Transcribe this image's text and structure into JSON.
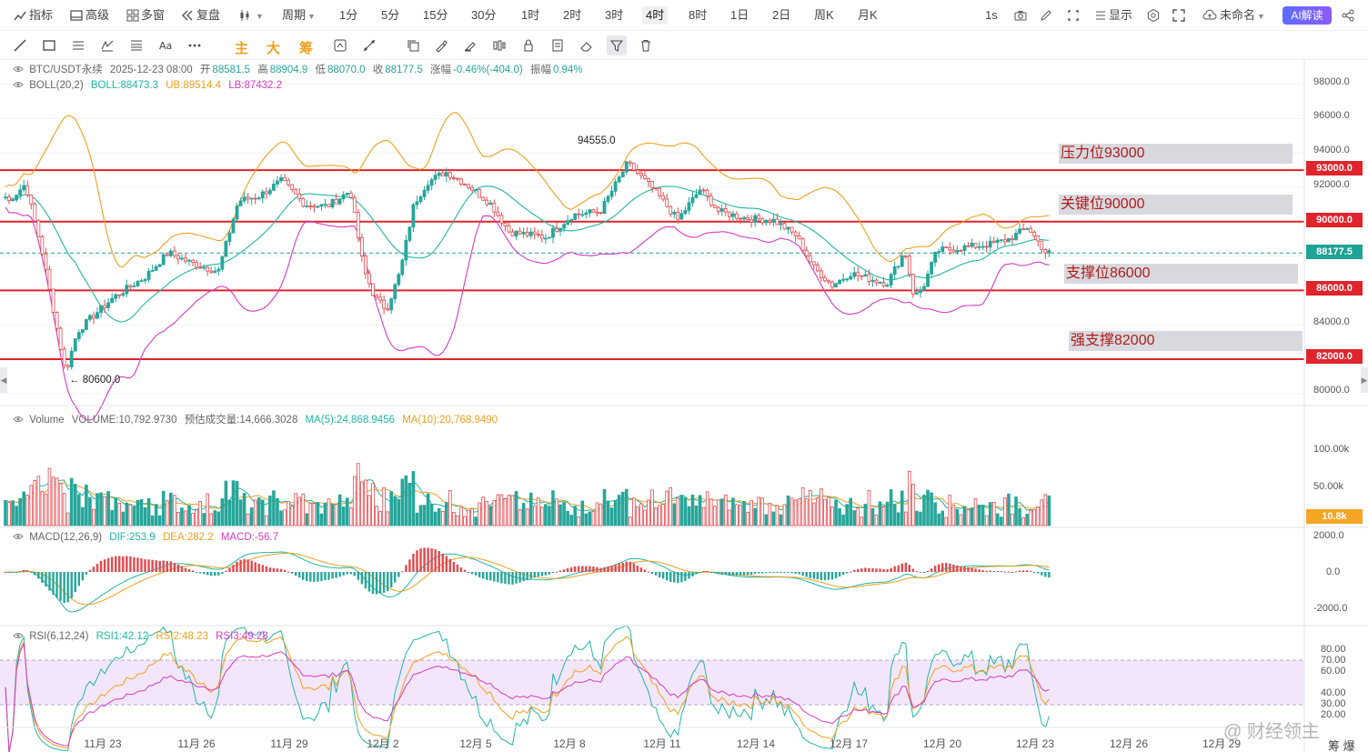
{
  "toolbar": {
    "items": [
      {
        "label": "指标",
        "icon": "indicator-icon"
      },
      {
        "label": "高级",
        "icon": "layout-icon"
      },
      {
        "label": "多窗",
        "icon": "grid-icon"
      },
      {
        "label": "复盘",
        "icon": "rewind-icon"
      },
      {
        "label": "",
        "icon": "chart-type-icon"
      },
      {
        "label": "周期"
      }
    ],
    "intervals": [
      "1分",
      "5分",
      "15分",
      "30分",
      "1时",
      "2时",
      "3时",
      "4时",
      "8时",
      "1日",
      "2日",
      "周K",
      "月K"
    ],
    "active_interval": "4时",
    "right": {
      "interval_short": "1s",
      "display_label": "显示",
      "layout_name": "未命名",
      "ai_label": "AI解读"
    }
  },
  "drawbar": {
    "highlight_texts": [
      "主",
      "大",
      "筹"
    ]
  },
  "main_legend": {
    "symbol": "BTC/USDT永续",
    "datetime": "2025-12-23 08:00",
    "open_label": "开",
    "open": "88581.5",
    "high_label": "高",
    "high": "88904.9",
    "low_label": "低",
    "low": "88070.0",
    "close_label": "收",
    "close": "88177.5",
    "change_label": "涨幅",
    "change": "-0.46%(-404.0)",
    "amp_label": "振幅",
    "amp": "0.94%"
  },
  "boll_legend": {
    "name": "BOLL(20,2)",
    "boll": "BOLL:88473.3",
    "ub": "UB:89514.4",
    "lb": "LB:87432.2"
  },
  "levels": [
    {
      "label": "压力位93000",
      "tag": "93000.0",
      "price": 93000
    },
    {
      "label": "关键位90000",
      "tag": "90000.0",
      "price": 90000
    },
    {
      "label": "支撑位86000",
      "tag": "86000.0",
      "price": 86000
    },
    {
      "label": "强支撑82000",
      "tag": "82000.0",
      "price": 82000
    }
  ],
  "current_price": {
    "tag": "88177.5",
    "price": 88177.5
  },
  "price_axis": [
    "98000.0",
    "96000.0",
    "94000.0",
    "92000.0",
    "84000.0",
    "80000.0"
  ],
  "annotations": {
    "high": "94555.0",
    "low": "← 80600.0"
  },
  "volume_legend": {
    "name": "Volume",
    "volume": "VOLUME:10,792.9730",
    "estimate": "预估成交量:14,666.3028",
    "ma5": "MA(5):24,868.9456",
    "ma10": "MA(10):20,768.9490"
  },
  "volume_axis": [
    "100.00k",
    "50.00k"
  ],
  "volume_tag": "10.8k",
  "macd_legend": {
    "name": "MACD(12,26,9)",
    "dif": "DIF:253.9",
    "dea": "DEA:282.2",
    "macd": "MACD:-56.7"
  },
  "macd_axis": [
    "2000.0",
    "0.0",
    "-2000.0"
  ],
  "rsi_legend": {
    "name": "RSI(6,12,24)",
    "rsi1": "RSI1:42.12",
    "rsi2": "RSI2:48.23",
    "rsi3": "RSI3:49.28"
  },
  "rsi_axis": [
    "80.00",
    "70.00",
    "60.00",
    "40.00",
    "30.00",
    "20.00"
  ],
  "dates": [
    "11月 23",
    "11月 26",
    "11月 29",
    "12月 2",
    "12月 5",
    "12月 8",
    "12月 11",
    "12月 14",
    "12月 17",
    "12月 20",
    "12月 23",
    "12月 26",
    "12月 29"
  ],
  "watermark": "@ 财经领主",
  "watermark2": "筹 爆",
  "colors": {
    "up": "#26a69a",
    "down": "#e5484d",
    "level": "#e0242c",
    "ub": "#f0a020",
    "lb": "#d63ac6",
    "mid": "#1fb7a6",
    "tag_bg": "#e0242c",
    "vol_tag_bg": "#f5a524"
  }
}
